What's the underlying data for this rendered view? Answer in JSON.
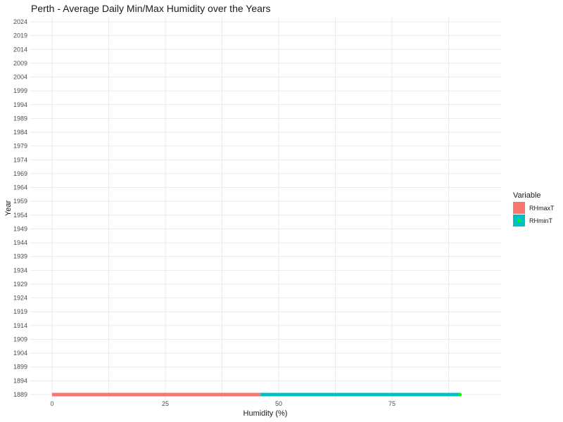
{
  "chart_data": {
    "type": "bar",
    "orientation": "horizontal",
    "stacked": true,
    "title": "Perth - Average Daily Min/Max Humidity over the Years",
    "xlabel": "Humidity (%)",
    "ylabel": "Year",
    "xlim": [
      0,
      100
    ],
    "x_ticks": [
      "0",
      "25",
      "50",
      "75"
    ],
    "categories": [
      "1889"
    ],
    "y_ticks": [
      "1889",
      "1894",
      "1899",
      "1904",
      "1909",
      "1914",
      "1919",
      "1924",
      "1929",
      "1934",
      "1939",
      "1944",
      "1949",
      "1954",
      "1959",
      "1964",
      "1969",
      "1974",
      "1979",
      "1984",
      "1989",
      "1994",
      "1999",
      "2004",
      "2009",
      "2014",
      "2019",
      "2024"
    ],
    "series": [
      {
        "name": "RHmaxT",
        "values": [
          46
        ],
        "color": "#f8766d"
      },
      {
        "name": "RHminT",
        "values": [
          44
        ],
        "color": "#00bfc4"
      }
    ],
    "marker": {
      "x": 90,
      "y": "1889",
      "color": "#00ff00"
    },
    "legend": {
      "title": "Variable",
      "position": "right"
    },
    "grid": true
  }
}
